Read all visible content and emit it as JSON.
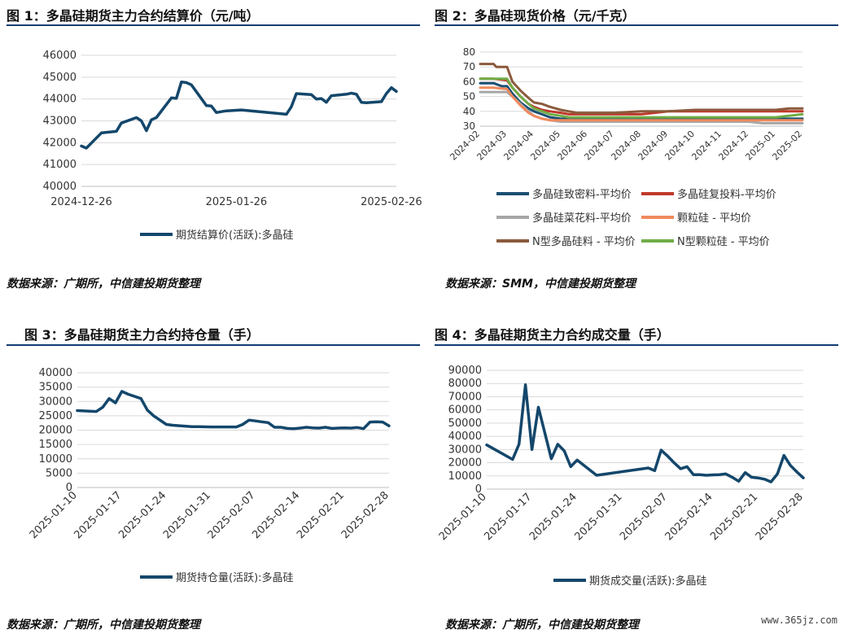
{
  "panels": [
    {
      "title": "图 1：多晶硅期货主力合约结算价（元/吨）",
      "source": "数据来源：广期所，中信建投期货整理",
      "chart_data": {
        "type": "line",
        "title": "图 1：多晶硅期货主力合约结算价（元/吨）",
        "ylim": [
          40000,
          46000
        ],
        "yticks": [
          "40000",
          "41000",
          "42000",
          "43000",
          "44000",
          "45000",
          "46000"
        ],
        "xticks": [
          "2024-12-26",
          "2025-01-26",
          "2025-02-26"
        ],
        "grid": true,
        "legend": "bottom",
        "series": [
          {
            "name": "期货结算价(活跃):多晶硅",
            "color": "#14476b",
            "x": [
              "2024-12-26",
              "2024-12-27",
              "2024-12-30",
              "2025-01-02",
              "2025-01-03",
              "2025-01-06",
              "2025-01-07",
              "2025-01-08",
              "2025-01-09",
              "2025-01-10",
              "2025-01-13",
              "2025-01-14",
              "2025-01-15",
              "2025-01-16",
              "2025-01-17",
              "2025-01-20",
              "2025-01-21",
              "2025-01-22",
              "2025-01-23",
              "2025-01-24",
              "2025-01-27",
              "2025-02-05",
              "2025-02-06",
              "2025-02-07",
              "2025-02-10",
              "2025-02-11",
              "2025-02-12",
              "2025-02-13",
              "2025-02-14",
              "2025-02-17",
              "2025-02-18",
              "2025-02-19",
              "2025-02-20",
              "2025-02-21",
              "2025-02-24",
              "2025-02-25",
              "2025-02-26",
              "2025-02-27"
            ],
            "y": [
              41850,
              41750,
              42450,
              42520,
              42900,
              43150,
              43000,
              42550,
              43050,
              43150,
              44050,
              44030,
              44780,
              44750,
              44650,
              43700,
              43680,
              43380,
              43420,
              43460,
              43500,
              43300,
              43650,
              44250,
              44200,
              44000,
              44020,
              43850,
              44150,
              44220,
              44270,
              44220,
              43850,
              43830,
              43880,
              44250,
              44520,
              44350
            ]
          }
        ]
      }
    },
    {
      "title": "图 2：多晶硅现货价格（元/千克）",
      "source": "数据来源：SMM，中信建投期货整理",
      "chart_data": {
        "type": "line",
        "title": "图 2：多晶硅现货价格（元/千克）",
        "ylim": [
          30,
          80
        ],
        "yticks": [
          "30",
          "40",
          "50",
          "60",
          "70",
          "80"
        ],
        "xticks": [
          "2024-02",
          "2024-03",
          "2024-04",
          "2024-05",
          "2024-06",
          "2024-07",
          "2024-08",
          "2024-09",
          "2024-10",
          "2024-11",
          "2024-12",
          "2025-01",
          "2025-02"
        ],
        "grid": true,
        "legend": "bottom",
        "series": [
          {
            "name": "多晶硅致密料-平均价",
            "color": "#1b4f72",
            "x": [
              0,
              0.5,
              0.8,
              1.0,
              1.2,
              1.5,
              1.8,
              2.0,
              2.3,
              2.6,
              3.0,
              3.3,
              3.6,
              4.0,
              6.0,
              8.0,
              10.0,
              11.0,
              11.5,
              12.0
            ],
            "y": [
              59,
              59,
              57,
              57,
              52,
              46,
              42,
              40,
              38,
              36,
              35,
              35,
              35,
              35,
              35,
              35,
              35,
              35,
              35,
              35
            ]
          },
          {
            "name": "多晶硅复投料-平均价",
            "color": "#c0392b",
            "x": [
              0,
              0.5,
              1.0,
              1.2,
              1.5,
              1.8,
              2.0,
              2.3,
              2.6,
              3.0,
              3.3,
              3.6,
              4.0,
              6.0,
              6.5,
              7.0,
              8.0,
              9.0,
              10.0,
              11.0,
              11.5,
              12.0
            ],
            "y": [
              62,
              62,
              61,
              56,
              50,
              45,
              43,
              41,
              40,
              39,
              38,
              38,
              38,
              38,
              39,
              40,
              40,
              40,
              40,
              40,
              40,
              40
            ]
          },
          {
            "name": "多晶硅菜花料-平均价",
            "color": "#a6a6a6",
            "x": [
              0,
              0.5,
              1.0,
              1.2,
              1.5,
              1.8,
              2.0,
              2.3,
              2.6,
              3.0,
              4.0,
              5.0,
              6.0,
              7.0,
              8.0,
              9.0,
              10.0,
              10.5,
              11.0,
              11.5,
              12.0
            ],
            "y": [
              53,
              53,
              53,
              50,
              45,
              40,
              37,
              35,
              34,
              33,
              33,
              33,
              33,
              33,
              33,
              33,
              33,
              32,
              32,
              32,
              32
            ]
          },
          {
            "name": "颗粒硅 - 平均价",
            "color": "#f08a5d",
            "x": [
              0,
              0.5,
              1.0,
              1.2,
              1.5,
              1.8,
              2.0,
              2.3,
              2.6,
              3.0,
              4.0,
              5.0,
              6.0,
              7.0,
              8.0,
              9.0,
              10.0,
              11.0,
              11.5,
              12.0
            ],
            "y": [
              56,
              56,
              55,
              50,
              44,
              39,
              37,
              35,
              34,
              34,
              34,
              34,
              34,
              34,
              34,
              34,
              34,
              34,
              34,
              34
            ]
          },
          {
            "name": "N型多晶硅料 - 平均价",
            "color": "#8b5a3c",
            "x": [
              0,
              0.5,
              0.6,
              1.0,
              1.2,
              1.5,
              1.8,
              2.0,
              2.3,
              2.6,
              3.0,
              3.3,
              3.6,
              4.0,
              5.0,
              6.0,
              7.0,
              8.0,
              9.0,
              10.0,
              10.5,
              11.0,
              11.5,
              12.0
            ],
            "y": [
              72,
              72,
              70,
              70,
              60,
              54,
              49,
              46,
              45,
              43,
              41,
              40,
              39,
              39,
              39,
              40,
              40,
              41,
              41,
              41,
              41,
              41,
              42,
              42
            ]
          },
          {
            "name": "N型颗粒硅 - 平均价",
            "color": "#70ad47",
            "x": [
              0,
              0.5,
              1.0,
              1.2,
              1.5,
              1.8,
              2.0,
              2.3,
              2.6,
              3.0,
              3.3,
              3.6,
              4.0,
              6.0,
              8.0,
              10.0,
              11.0,
              11.5,
              12.0
            ],
            "y": [
              62,
              62,
              62,
              56,
              50,
              45,
              42,
              40,
              38,
              37,
              36,
              36,
              36,
              36,
              36,
              36,
              36,
              37,
              38
            ]
          }
        ]
      }
    },
    {
      "title": "图 3：多晶硅期货主力合约持仓量（手）",
      "source": "数据来源：广期所，中信建投期货整理",
      "chart_data": {
        "type": "line",
        "title": "图 3：多晶硅期货主力合约持仓量（手）",
        "ylim": [
          0,
          40000
        ],
        "yticks": [
          "0",
          "5000",
          "10000",
          "15000",
          "20000",
          "25000",
          "30000",
          "35000",
          "40000"
        ],
        "xticks": [
          "2025-01-10",
          "2025-01-17",
          "2025-01-24",
          "2025-01-31",
          "2025-02-07",
          "2025-02-14",
          "2025-02-21",
          "2025-02-28"
        ],
        "grid": true,
        "legend": "bottom",
        "series": [
          {
            "name": "期货持仓量(活跃):多晶硅",
            "color": "#14476b",
            "x": [
              0,
              1,
              2,
              3,
              4,
              5,
              6,
              7,
              8,
              10,
              11,
              12,
              14,
              15,
              18,
              19,
              21,
              25,
              26,
              27,
              28,
              29,
              30,
              31,
              32,
              33,
              34,
              35,
              36,
              37,
              38,
              39,
              40,
              41,
              42,
              43,
              44,
              45,
              46,
              47,
              48,
              49
            ],
            "y": [
              26800,
              26700,
              26600,
              26500,
              28000,
              31000,
              29500,
              33500,
              32500,
              31000,
              27000,
              25000,
              22000,
              21700,
              21200,
              21200,
              21100,
              21100,
              22000,
              23500,
              23200,
              22900,
              22600,
              21000,
              21000,
              20600,
              20500,
              20700,
              21000,
              20800,
              20700,
              21000,
              20600,
              20700,
              20800,
              20700,
              20900,
              20500,
              22800,
              22900,
              22800,
              21500
            ]
          }
        ]
      }
    },
    {
      "title": "图 4：多晶硅期货主力合约成交量（手）",
      "source": "数据来源：广期所，中信建投期货整理",
      "chart_data": {
        "type": "line",
        "title": "图 4：多晶硅期货主力合约成交量（手）",
        "ylim": [
          0,
          90000
        ],
        "yticks": [
          "0",
          "10000",
          "20000",
          "30000",
          "40000",
          "50000",
          "60000",
          "70000",
          "80000",
          "90000"
        ],
        "xticks": [
          "2025-01-10",
          "2025-01-17",
          "2025-01-24",
          "2025-01-31",
          "2025-02-07",
          "2025-02-14",
          "2025-02-21",
          "2025-02-28"
        ],
        "grid": true,
        "legend": "bottom",
        "series": [
          {
            "name": "期货成交量(活跃):多晶硅",
            "color": "#14476b",
            "x": [
              0,
              4,
              5,
              6,
              7,
              8,
              10,
              11,
              12,
              13,
              14,
              17,
              25,
              26,
              27,
              28,
              29,
              30,
              31,
              32,
              33,
              34,
              35,
              36,
              37,
              38,
              39,
              40,
              41,
              42,
              43,
              44,
              45,
              46,
              47,
              48,
              49
            ],
            "y": [
              33500,
              22500,
              34000,
              79000,
              30000,
              62000,
              23000,
              34000,
              29000,
              17000,
              22000,
              10500,
              16000,
              14000,
              29500,
              25000,
              20000,
              15500,
              17000,
              11000,
              11000,
              10500,
              10800,
              11000,
              11500,
              9000,
              6000,
              12500,
              9000,
              8500,
              7500,
              5500,
              11500,
              25500,
              18000,
              13000,
              8500
            ]
          }
        ]
      }
    }
  ],
  "watermark": "www.365jz.com"
}
